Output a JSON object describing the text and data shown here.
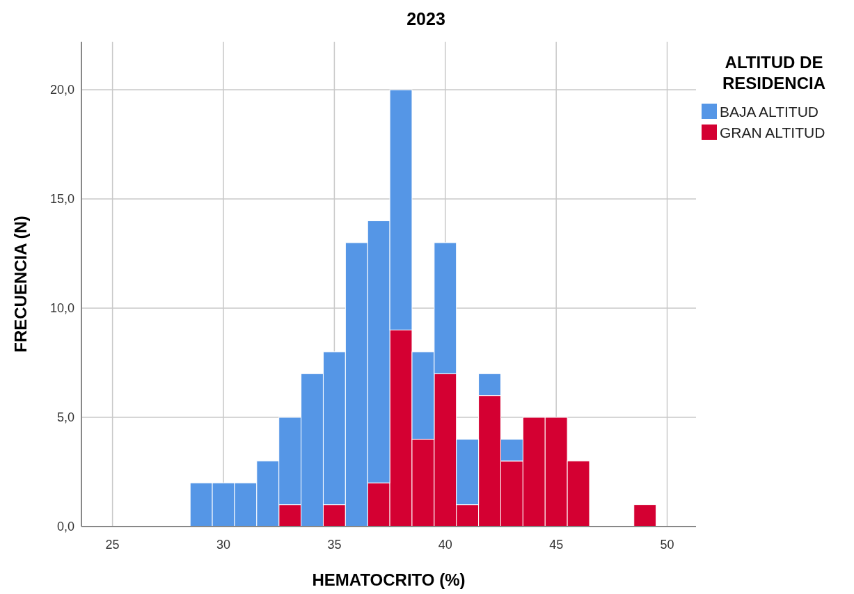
{
  "chart_data": {
    "type": "bar",
    "title": "2023",
    "xlabel": "HEMATOCRITO (%)",
    "ylabel": "FRECUENCIA (N)",
    "legend_title": "ALTITUD DE RESIDENCIA",
    "stacked": true,
    "x": [
      29,
      30,
      31,
      32,
      33,
      34,
      35,
      36,
      37,
      38,
      39,
      40,
      41,
      42,
      43,
      44,
      45,
      46,
      47,
      48,
      49
    ],
    "series": [
      {
        "name": "GRAN ALTITUD",
        "color": "#d40032",
        "values": [
          0,
          0,
          0,
          0,
          1,
          0,
          1,
          0,
          2,
          9,
          4,
          7,
          1,
          6,
          3,
          5,
          5,
          3,
          0,
          0,
          1
        ]
      },
      {
        "name": "BAJA ALTITUD",
        "color": "#5596e6",
        "values": [
          2,
          2,
          2,
          3,
          4,
          7,
          7,
          13,
          12,
          11,
          4,
          6,
          3,
          1,
          1,
          0,
          0,
          0,
          0,
          0,
          0
        ]
      }
    ],
    "xlim": [
      23.6,
      51.3
    ],
    "xticks": [
      25,
      30,
      35,
      40,
      45,
      50
    ],
    "ylim": [
      0,
      22.2
    ],
    "yticks": [
      {
        "value": 0,
        "label": "0,0"
      },
      {
        "value": 5,
        "label": "5,0"
      },
      {
        "value": 10,
        "label": "10,0"
      },
      {
        "value": 15,
        "label": "15,0"
      },
      {
        "value": 20,
        "label": "20,0"
      }
    ],
    "grid": true,
    "legend": "top right"
  }
}
